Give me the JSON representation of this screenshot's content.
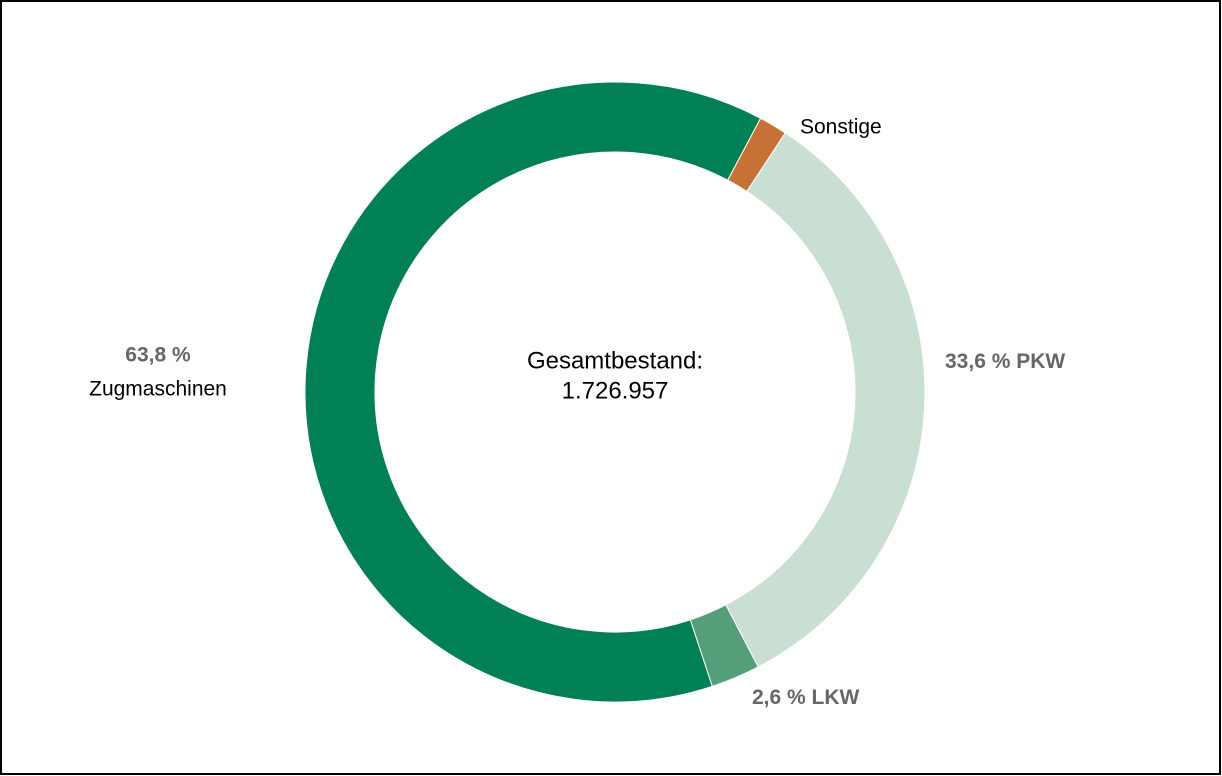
{
  "chart_data": {
    "type": "donut",
    "categories": [
      "Sonstige",
      "PKW",
      "LKW",
      "Zugmaschinen"
    ],
    "values": [
      1.5,
      33.6,
      2.6,
      63.8
    ],
    "value_labels": [
      null,
      "33,6 %",
      "2,6 %",
      "63,8 %"
    ],
    "colors": [
      "#c87137",
      "#c8dfd2",
      "#559e7a",
      "#008054"
    ],
    "center_text": [
      "Gesamtbestand:",
      "1.726.957"
    ]
  }
}
